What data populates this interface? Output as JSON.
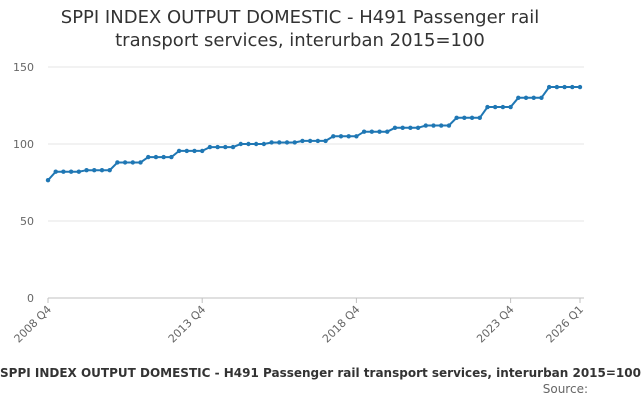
{
  "chart_data": {
    "type": "line",
    "title": "SPPI INDEX OUTPUT DOMESTIC - H491 Passenger rail transport services, interurban 2015=100",
    "xlabel": "",
    "ylabel": "",
    "ylim": [
      0,
      150
    ],
    "yticks": [
      0,
      50,
      100,
      150
    ],
    "grid": true,
    "x_tick_labels": [
      "2008 Q4",
      "2013 Q4",
      "2018 Q4",
      "2023 Q4",
      "2026 Q1"
    ],
    "x": [
      "2008 Q4",
      "2009 Q1",
      "2009 Q2",
      "2009 Q3",
      "2009 Q4",
      "2010 Q1",
      "2010 Q2",
      "2010 Q3",
      "2010 Q4",
      "2011 Q1",
      "2011 Q2",
      "2011 Q3",
      "2011 Q4",
      "2012 Q1",
      "2012 Q2",
      "2012 Q3",
      "2012 Q4",
      "2013 Q1",
      "2013 Q2",
      "2013 Q3",
      "2013 Q4",
      "2014 Q1",
      "2014 Q2",
      "2014 Q3",
      "2014 Q4",
      "2015 Q1",
      "2015 Q2",
      "2015 Q3",
      "2015 Q4",
      "2016 Q1",
      "2016 Q2",
      "2016 Q3",
      "2016 Q4",
      "2017 Q1",
      "2017 Q2",
      "2017 Q3",
      "2017 Q4",
      "2018 Q1",
      "2018 Q2",
      "2018 Q3",
      "2018 Q4",
      "2019 Q1",
      "2019 Q2",
      "2019 Q3",
      "2019 Q4",
      "2020 Q1",
      "2020 Q2",
      "2020 Q3",
      "2020 Q4",
      "2021 Q1",
      "2021 Q2",
      "2021 Q3",
      "2021 Q4",
      "2022 Q1",
      "2022 Q2",
      "2022 Q3",
      "2022 Q4",
      "2023 Q1",
      "2023 Q2",
      "2023 Q3",
      "2023 Q4",
      "2024 Q1",
      "2024 Q2",
      "2024 Q3",
      "2024 Q4",
      "2025 Q1",
      "2025 Q2",
      "2025 Q3",
      "2025 Q4",
      "2026 Q1"
    ],
    "series": [
      {
        "name": "",
        "color": "#1f77b4",
        "values": [
          76.5,
          82,
          82,
          82,
          82,
          83,
          83,
          83,
          83,
          88,
          88,
          88,
          88,
          91.5,
          91.5,
          91.5,
          91.5,
          95.5,
          95.5,
          95.5,
          95.5,
          98,
          98,
          98,
          98,
          100,
          100,
          100,
          100,
          101,
          101,
          101,
          101,
          102,
          102,
          102,
          102,
          105,
          105,
          105,
          105,
          108,
          108,
          108,
          108,
          110.5,
          110.5,
          110.5,
          110.5,
          112,
          112,
          112,
          112,
          117,
          117,
          117,
          117,
          124,
          124,
          124,
          124,
          130,
          130,
          130,
          130,
          137,
          137,
          137,
          137,
          137
        ]
      }
    ]
  },
  "caption": "SPPI INDEX OUTPUT DOMESTIC - H491 Passenger rail transport services, interurban 2015=100",
  "source": "Source:"
}
